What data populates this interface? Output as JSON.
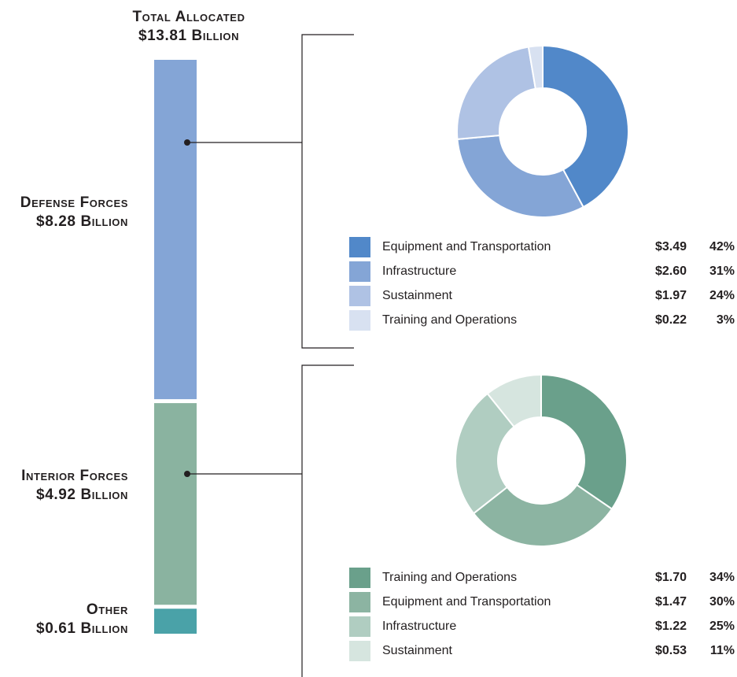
{
  "header": {
    "total_line1": "Total Allocated",
    "total_line2": "$13.81 Billion"
  },
  "labels": {
    "defense_line1": "Defense Forces",
    "defense_line2": "$8.28 Billion",
    "interior_line1": "Interior Forces",
    "interior_line2": "$4.92 Billion",
    "other_line1": "Other",
    "other_line2": "$0.61 Billion"
  },
  "chart_data": [
    {
      "type": "bar",
      "stacked": true,
      "orientation": "vertical",
      "total": 13.81,
      "series": [
        {
          "name": "Defense Forces",
          "value": 8.28,
          "color": "#84a5d6"
        },
        {
          "name": "Interior Forces",
          "value": 4.92,
          "color": "#8ab3a0"
        },
        {
          "name": "Other",
          "value": 0.61,
          "color": "#4aa2a8"
        }
      ]
    },
    {
      "type": "pie",
      "donut": true,
      "group": "Defense Forces",
      "slices": [
        {
          "label": "Equipment and Transportation",
          "amount": "$3.49",
          "value": 3.49,
          "pct": "42%",
          "color": "#5188c9"
        },
        {
          "label": "Infrastructure",
          "amount": "$2.60",
          "value": 2.6,
          "pct": "31%",
          "color": "#84a5d6"
        },
        {
          "label": "Sustainment",
          "amount": "$1.97",
          "value": 1.97,
          "pct": "24%",
          "color": "#afc2e4"
        },
        {
          "label": "Training and Operations",
          "amount": "$0.22",
          "value": 0.22,
          "pct": "3%",
          "color": "#d8e1f1"
        }
      ]
    },
    {
      "type": "pie",
      "donut": true,
      "group": "Interior Forces",
      "slices": [
        {
          "label": "Training and Operations",
          "amount": "$1.70",
          "value": 1.7,
          "pct": "34%",
          "color": "#6aa08b"
        },
        {
          "label": "Equipment and Transportation",
          "amount": "$1.47",
          "value": 1.47,
          "pct": "30%",
          "color": "#8cb4a2"
        },
        {
          "label": "Infrastructure",
          "amount": "$1.22",
          "value": 1.22,
          "pct": "25%",
          "color": "#b0cdc1"
        },
        {
          "label": "Sustainment",
          "amount": "$0.53",
          "value": 0.53,
          "pct": "11%",
          "color": "#d6e5df"
        }
      ]
    }
  ]
}
